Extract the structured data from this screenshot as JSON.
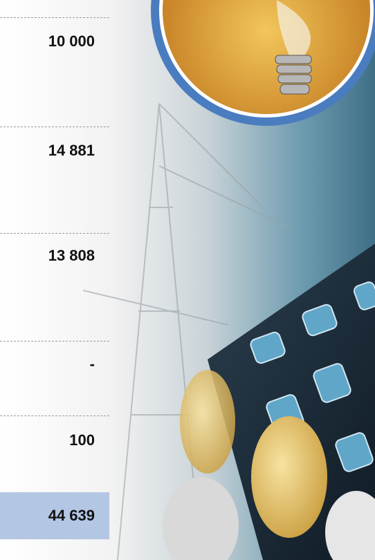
{
  "values": [
    "10 000",
    "14 881",
    "13 808",
    "-",
    "100",
    "44 639"
  ]
}
